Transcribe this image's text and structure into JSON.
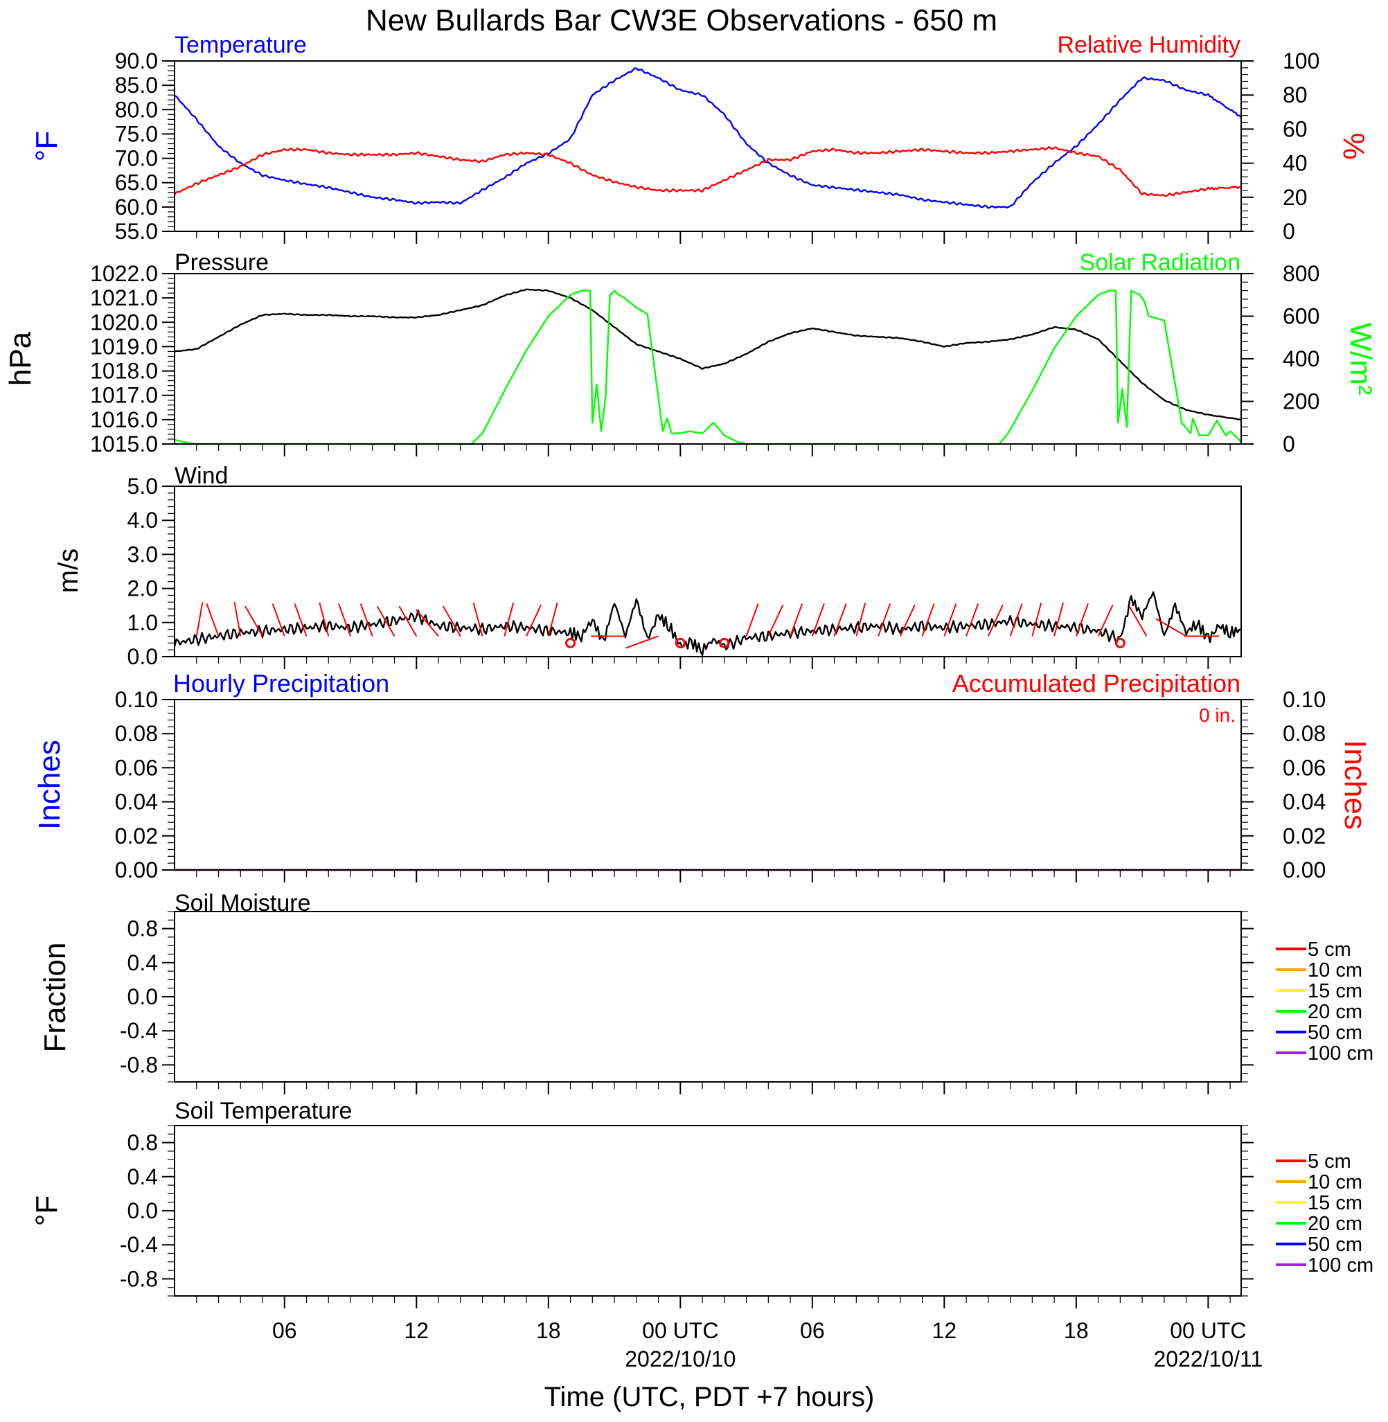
{
  "title": "New Bullards Bar CW3E Observations - 650 m",
  "xaxis": {
    "title": "Time (UTC, PDT +7 hours)",
    "ticks": [
      {
        "hour": 6,
        "label": "06",
        "date": ""
      },
      {
        "hour": 12,
        "label": "12",
        "date": ""
      },
      {
        "hour": 18,
        "label": "18",
        "date": ""
      },
      {
        "hour": 24,
        "label": "00 UTC",
        "date": "2022/10/10"
      },
      {
        "hour": 30,
        "label": "06",
        "date": ""
      },
      {
        "hour": 36,
        "label": "12",
        "date": ""
      },
      {
        "hour": 42,
        "label": "18",
        "date": ""
      },
      {
        "hour": 48,
        "label": "00 UTC",
        "date": "2022/10/11"
      }
    ]
  },
  "panels": {
    "temp_rh": {
      "left_title": "Temperature",
      "right_title": "Relative Humidity",
      "left_unit": "°F",
      "right_unit": "%",
      "left_ticks": [
        "90.0",
        "85.0",
        "80.0",
        "75.0",
        "70.0",
        "65.0",
        "60.0",
        "55.0"
      ],
      "right_ticks": [
        "100",
        "80",
        "60",
        "40",
        "20",
        "0"
      ]
    },
    "pressure_solar": {
      "left_title": "Pressure",
      "right_title": "Solar Radiation",
      "left_unit": "hPa",
      "right_unit": "W/m²",
      "left_ticks": [
        "1022.0",
        "1021.0",
        "1020.0",
        "1019.0",
        "1018.0",
        "1017.0",
        "1016.0",
        "1015.0"
      ],
      "right_ticks": [
        "800",
        "600",
        "400",
        "200",
        "0"
      ]
    },
    "wind": {
      "left_title": "Wind",
      "left_unit": "m/s",
      "left_ticks": [
        "5.0",
        "4.0",
        "3.0",
        "2.0",
        "1.0",
        "0.0"
      ]
    },
    "precip": {
      "left_title": "Hourly Precipitation",
      "right_title": "Accumulated Precipitation",
      "left_unit": "Inches",
      "right_unit": "Inches",
      "accum_label": "0 in.",
      "left_ticks": [
        "0.10",
        "0.08",
        "0.06",
        "0.04",
        "0.02",
        "0.00"
      ],
      "right_ticks": [
        "0.10",
        "0.08",
        "0.06",
        "0.04",
        "0.02",
        "0.00"
      ]
    },
    "soil_moisture": {
      "left_title": "Soil Moisture",
      "left_unit": "Fraction",
      "left_ticks": [
        "0.8",
        "0.4",
        "0.0",
        "-0.4",
        "-0.8"
      ],
      "legend": [
        {
          "label": "5 cm",
          "color": "#ff0000"
        },
        {
          "label": "10 cm",
          "color": "#ffa500"
        },
        {
          "label": "15 cm",
          "color": "#ffff00"
        },
        {
          "label": "20 cm",
          "color": "#00ff00"
        },
        {
          "label": "50 cm",
          "color": "#0000ff"
        },
        {
          "label": "100 cm",
          "color": "#a020f0"
        }
      ]
    },
    "soil_temp": {
      "left_title": "Soil Temperature",
      "left_unit": "°F",
      "left_ticks": [
        "0.8",
        "0.4",
        "0.0",
        "-0.4",
        "-0.8"
      ],
      "legend": [
        {
          "label": "5 cm",
          "color": "#ff0000"
        },
        {
          "label": "10 cm",
          "color": "#ffa500"
        },
        {
          "label": "15 cm",
          "color": "#ffff00"
        },
        {
          "label": "20 cm",
          "color": "#00ff00"
        },
        {
          "label": "50 cm",
          "color": "#0000ff"
        },
        {
          "label": "100 cm",
          "color": "#a020f0"
        }
      ]
    }
  },
  "chart_data": [
    {
      "type": "line",
      "panel": "temp_rh",
      "xlim": [
        1,
        49.5
      ],
      "series": [
        {
          "name": "Temperature",
          "axis": "left",
          "color": "#0000ff",
          "ylim": [
            55,
            90
          ],
          "x": [
            1,
            2,
            3,
            4,
            5,
            6,
            7,
            8,
            9,
            10,
            11,
            12,
            13,
            14,
            15,
            16,
            17,
            18,
            19,
            20,
            21,
            22,
            23,
            24,
            25,
            26,
            27,
            28,
            29,
            30,
            31,
            32,
            33,
            34,
            35,
            36,
            37,
            38,
            39,
            40,
            41,
            42,
            43,
            44,
            45,
            46,
            47,
            48,
            49.5
          ],
          "y": [
            83,
            78,
            72.5,
            69,
            66.5,
            65.5,
            64.7,
            64,
            63,
            62,
            61.5,
            60.8,
            61,
            60.8,
            63.5,
            66,
            69,
            71,
            74,
            83,
            86,
            88.5,
            86.5,
            84,
            83,
            79,
            73,
            69,
            66.5,
            64.5,
            64,
            63.5,
            63,
            62.5,
            61.5,
            61,
            60.5,
            60,
            60,
            65,
            69,
            72.5,
            77,
            82,
            86.5,
            86,
            84,
            83,
            78.5
          ]
        },
        {
          "name": "Relative Humidity",
          "axis": "right",
          "color": "#ff0000",
          "ylim": [
            0,
            100
          ],
          "x": [
            1,
            2,
            3,
            4,
            5,
            6,
            7,
            8,
            9,
            10,
            11,
            12,
            13,
            14,
            15,
            16,
            17,
            18,
            19,
            20,
            21,
            22,
            23,
            24,
            25,
            26,
            27,
            28,
            29,
            30,
            31,
            32,
            33,
            34,
            35,
            36,
            37,
            38,
            39,
            40,
            41,
            42,
            43,
            44,
            45,
            46,
            47,
            48,
            49.5
          ],
          "y": [
            22,
            28,
            33,
            38,
            45,
            48,
            48,
            46,
            45,
            45,
            45,
            46,
            44,
            42,
            41,
            45,
            46,
            45,
            40,
            33,
            29,
            26,
            24,
            24,
            24,
            30,
            36,
            42,
            42,
            47,
            48,
            46,
            46,
            47,
            48,
            47,
            46,
            46,
            47,
            48,
            49,
            46,
            44,
            36,
            22,
            21,
            23,
            25,
            26
          ]
        }
      ]
    },
    {
      "type": "line",
      "panel": "pressure_solar",
      "xlim": [
        1,
        49.5
      ],
      "series": [
        {
          "name": "Pressure",
          "axis": "left",
          "color": "#000000",
          "ylim": [
            1015,
            1022
          ],
          "x": [
            1,
            2,
            3,
            4,
            5,
            6,
            7,
            8,
            9,
            10,
            11,
            12,
            13,
            14,
            15,
            16,
            17,
            18,
            19,
            20,
            21,
            22,
            23,
            24,
            25,
            26,
            27,
            28,
            29,
            30,
            31,
            32,
            33,
            34,
            35,
            36,
            37,
            38,
            39,
            40,
            41,
            42,
            43,
            44,
            45,
            46,
            47,
            48,
            49.5
          ],
          "y": [
            1018.8,
            1018.9,
            1019.4,
            1019.9,
            1020.3,
            1020.35,
            1020.3,
            1020.3,
            1020.25,
            1020.25,
            1020.2,
            1020.2,
            1020.3,
            1020.5,
            1020.7,
            1021.1,
            1021.35,
            1021.3,
            1021.0,
            1020.5,
            1019.8,
            1019.1,
            1018.8,
            1018.5,
            1018.1,
            1018.3,
            1018.7,
            1019.2,
            1019.55,
            1019.75,
            1019.6,
            1019.45,
            1019.4,
            1019.35,
            1019.2,
            1019.0,
            1019.15,
            1019.2,
            1019.3,
            1019.5,
            1019.8,
            1019.7,
            1019.3,
            1018.4,
            1017.5,
            1016.8,
            1016.4,
            1016.2,
            1016.0
          ]
        },
        {
          "name": "Solar Radiation",
          "axis": "right",
          "color": "#00ff00",
          "ylim": [
            0,
            800
          ],
          "x": [
            1,
            1.6,
            2,
            3,
            4,
            5,
            6,
            7,
            8,
            9,
            10,
            11,
            12,
            13,
            14,
            14.5,
            15,
            16,
            17,
            18,
            19,
            19.5,
            19.9,
            20.0,
            20.2,
            20.4,
            20.6,
            20.8,
            21.0,
            21.2,
            21.4,
            22,
            22.5,
            23.2,
            23.4,
            23.6,
            24,
            24.4,
            25,
            25.5,
            26,
            26.6,
            27,
            30,
            35,
            38.5,
            38.9,
            40,
            41,
            42,
            43,
            43.5,
            43.8,
            43.9,
            44.1,
            44.3,
            44.5,
            44.7,
            44.9,
            45.1,
            45.3,
            46,
            46.8,
            47.2,
            47.3,
            47.6,
            48,
            48.4,
            48.8,
            49.0,
            49.5
          ],
          "y": [
            20,
            5,
            0,
            0,
            0,
            0,
            0,
            0,
            0,
            0,
            0,
            0,
            0,
            0,
            0,
            0,
            50,
            250,
            440,
            600,
            700,
            720,
            720,
            100,
            280,
            60,
            220,
            700,
            720,
            700,
            690,
            640,
            610,
            60,
            120,
            50,
            50,
            60,
            50,
            100,
            40,
            10,
            0,
            0,
            0,
            0,
            50,
            250,
            450,
            600,
            700,
            720,
            720,
            100,
            260,
            80,
            720,
            710,
            700,
            670,
            600,
            580,
            100,
            50,
            120,
            40,
            40,
            110,
            40,
            60,
            10
          ]
        }
      ]
    },
    {
      "type": "line",
      "panel": "wind",
      "xlim": [
        1,
        49.5
      ],
      "series": [
        {
          "name": "Wind",
          "axis": "left",
          "color": "#000000",
          "ylim": [
            0,
            5
          ],
          "x": [
            1,
            2,
            3,
            4,
            5,
            6,
            7,
            8,
            9,
            10,
            11,
            12,
            13,
            14,
            15,
            16,
            17,
            18,
            19,
            19.5,
            20,
            20.5,
            21,
            21.5,
            22,
            22.5,
            23,
            23.5,
            24,
            24.5,
            25,
            25.5,
            26,
            27,
            28,
            29,
            30,
            31,
            32,
            33,
            34,
            35,
            36,
            37,
            38,
            39,
            40,
            41,
            42,
            43,
            44,
            44.5,
            45,
            45.5,
            46,
            46.5,
            47,
            47.5,
            48,
            48.5,
            49,
            49.5
          ],
          "y": [
            0.4,
            0.5,
            0.6,
            0.7,
            0.75,
            0.8,
            0.85,
            0.9,
            0.85,
            0.95,
            1.05,
            1.2,
            0.9,
            0.85,
            0.8,
            0.9,
            0.85,
            0.75,
            0.7,
            0.6,
            1.1,
            0.4,
            1.6,
            0.6,
            1.7,
            0.5,
            1.2,
            0.9,
            0.3,
            0.4,
            0.2,
            0.5,
            0.3,
            0.55,
            0.6,
            0.7,
            0.75,
            0.8,
            0.85,
            0.9,
            0.8,
            0.9,
            0.85,
            0.9,
            0.95,
            1.05,
            0.95,
            0.9,
            0.85,
            0.75,
            0.5,
            1.7,
            1.2,
            1.9,
            0.6,
            1.5,
            0.7,
            1.0,
            0.5,
            0.9,
            0.7,
            0.8
          ]
        }
      ],
      "barbs": {
        "hours": [
          2,
          3,
          4,
          5,
          6,
          7,
          8,
          9,
          10,
          11,
          12,
          13,
          14,
          15,
          16,
          17,
          18,
          21.5,
          23,
          27,
          28,
          29,
          30,
          31,
          32,
          33,
          34,
          35,
          36,
          37,
          38,
          39,
          40,
          41,
          42,
          43,
          45.2,
          47,
          48.5
        ],
        "dirs": [
          10,
          340,
          350,
          330,
          340,
          340,
          345,
          340,
          340,
          330,
          330,
          320,
          330,
          345,
          15,
          25,
          15,
          270,
          250,
          20,
          25,
          20,
          20,
          20,
          15,
          20,
          25,
          20,
          20,
          20,
          25,
          20,
          15,
          15,
          20,
          25,
          330,
          300,
          270
        ]
      },
      "calm_hours": [
        19,
        24,
        26,
        44
      ]
    },
    {
      "type": "line",
      "panel": "precip",
      "xlim": [
        1,
        49.5
      ],
      "series": [
        {
          "name": "Hourly Precipitation",
          "axis": "left",
          "color": "#0000ff",
          "ylim": [
            0,
            0.1
          ],
          "x": [
            1,
            49.5
          ],
          "y": [
            0,
            0
          ]
        },
        {
          "name": "Accumulated Precipitation",
          "axis": "right",
          "color": "#cc0000",
          "ylim": [
            0,
            0.1
          ],
          "x": [
            1,
            49.5
          ],
          "y": [
            0,
            0
          ]
        }
      ]
    }
  ]
}
